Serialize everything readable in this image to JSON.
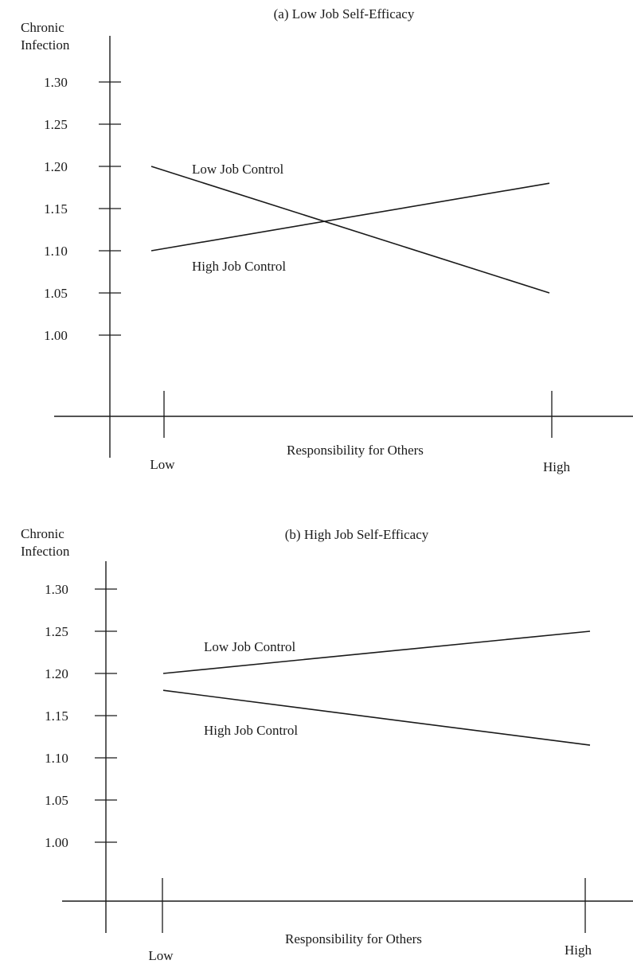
{
  "chart_data": [
    {
      "type": "line",
      "title": "(a) Low Job Self-Efficacy",
      "ylabel_line1": "Chronic",
      "ylabel_line2": "Infection",
      "xlabel": "Responsibility for Others",
      "categories": [
        "Low",
        "High"
      ],
      "yticks": [
        "1.30",
        "1.25",
        "1.20",
        "1.15",
        "1.10",
        "1.05",
        "1.00"
      ],
      "ylim": [
        1.0,
        1.3
      ],
      "grid": false,
      "series": [
        {
          "name": "Low Job Control",
          "values": [
            1.2,
            1.05
          ]
        },
        {
          "name": "High Job Control",
          "values": [
            1.1,
            1.18
          ]
        }
      ]
    },
    {
      "type": "line",
      "title": "(b) High Job Self-Efficacy",
      "ylabel_line1": "Chronic",
      "ylabel_line2": "Infection",
      "xlabel": "Responsibility for Others",
      "categories": [
        "Low",
        "High"
      ],
      "yticks": [
        "1.30",
        "1.25",
        "1.20",
        "1.15",
        "1.10",
        "1.05",
        "1.00"
      ],
      "ylim": [
        1.0,
        1.3
      ],
      "grid": false,
      "series": [
        {
          "name": "Low Job Control",
          "values": [
            1.2,
            1.25
          ]
        },
        {
          "name": "High Job Control",
          "values": [
            1.18,
            1.115
          ]
        }
      ]
    }
  ]
}
